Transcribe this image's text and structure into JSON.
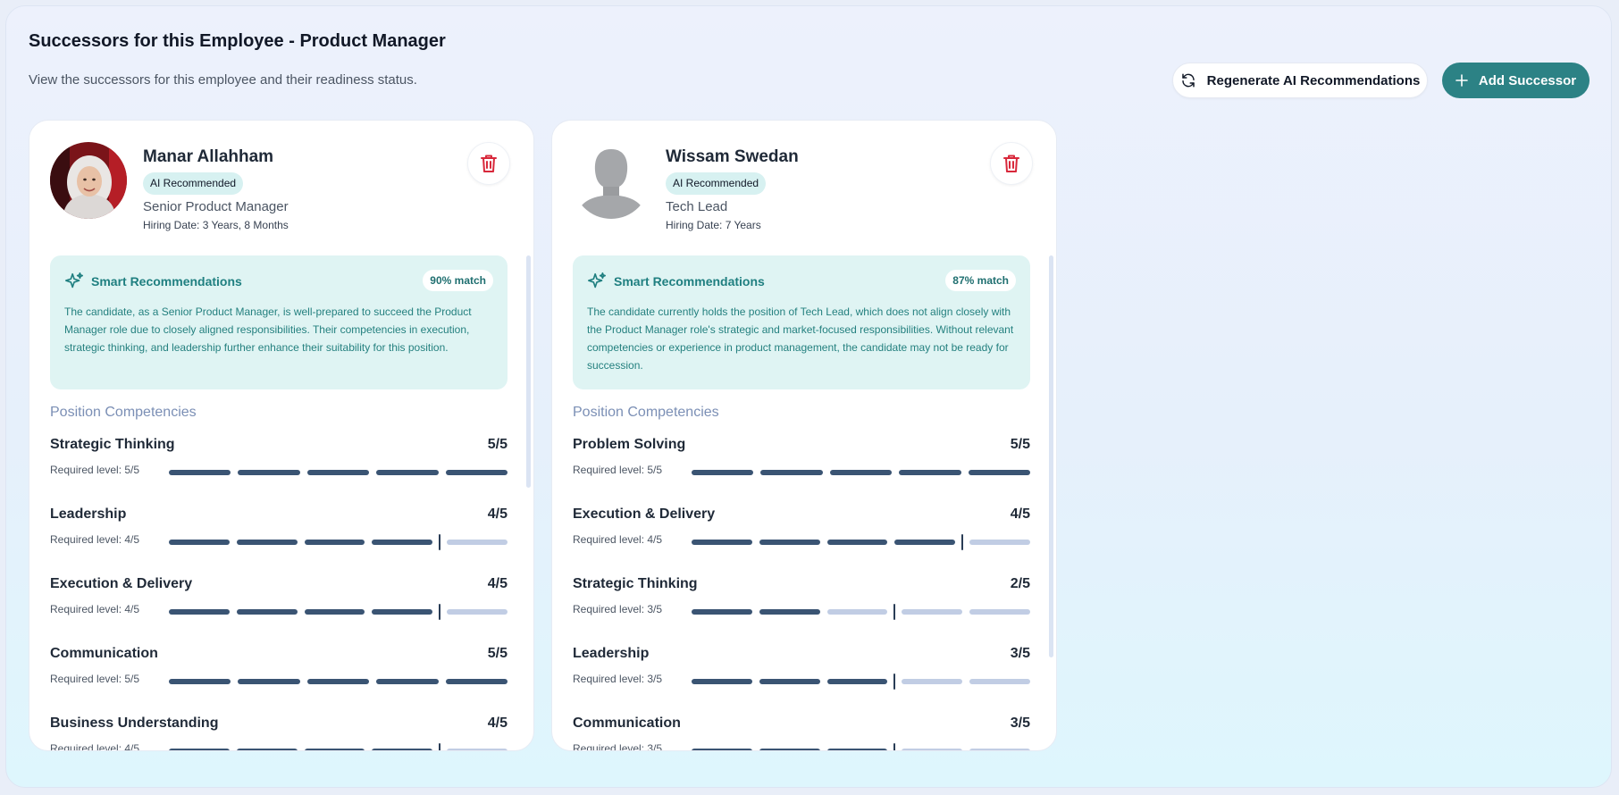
{
  "page": {
    "title": "Successors for this Employee - Product Manager",
    "subtitle": "View the successors for this employee and their readiness status."
  },
  "actions": {
    "regenerate_label": "Regenerate AI Recommendations",
    "add_label": "Add Successor"
  },
  "colors": {
    "accent": "#2c8285",
    "bar_filled": "#3a5473",
    "bar_empty": "#c1cde4",
    "delete": "#d8283b"
  },
  "candidates": [
    {
      "name": "Manar Allahham",
      "badge": "AI Recommended",
      "role": "Senior Product Manager",
      "hiring": "Hiring Date: 3 Years, 8 Months",
      "rec_title": "Smart Recommendations",
      "match": "90% match",
      "rec_text": "The candidate, as a Senior Product Manager, is well-prepared to succeed the Product Manager role due to closely aligned responsibilities. Their competencies in execution, strategic thinking, and leadership further enhance their suitability for this position.",
      "comp_heading": "Position Competencies",
      "competencies": [
        {
          "name": "Strategic Thinking",
          "score_text": "5/5",
          "required_text": "Required level: 5/5",
          "score": 5,
          "required": 5
        },
        {
          "name": "Leadership",
          "score_text": "4/5",
          "required_text": "Required level: 4/5",
          "score": 4,
          "required": 4
        },
        {
          "name": "Execution & Delivery",
          "score_text": "4/5",
          "required_text": "Required level: 4/5",
          "score": 4,
          "required": 4
        },
        {
          "name": "Communication",
          "score_text": "5/5",
          "required_text": "Required level: 5/5",
          "score": 5,
          "required": 5
        },
        {
          "name": "Business Understanding",
          "score_text": "4/5",
          "required_text": "Required level: 4/5",
          "score": 4,
          "required": 4
        }
      ]
    },
    {
      "name": "Wissam Swedan",
      "badge": "AI Recommended",
      "role": "Tech Lead",
      "hiring": "Hiring Date: 7 Years",
      "rec_title": "Smart Recommendations",
      "match": "87% match",
      "rec_text": "The candidate currently holds the position of Tech Lead, which does not align closely with the Product Manager role's strategic and market-focused responsibilities. Without relevant competencies or experience in product management, the candidate may not be ready for succession.",
      "comp_heading": "Position Competencies",
      "competencies": [
        {
          "name": "Problem Solving",
          "score_text": "5/5",
          "required_text": "Required level: 5/5",
          "score": 5,
          "required": 5
        },
        {
          "name": "Execution & Delivery",
          "score_text": "4/5",
          "required_text": "Required level: 4/5",
          "score": 4,
          "required": 4
        },
        {
          "name": "Strategic Thinking",
          "score_text": "2/5",
          "required_text": "Required level: 3/5",
          "score": 2,
          "required": 3
        },
        {
          "name": "Leadership",
          "score_text": "3/5",
          "required_text": "Required level: 3/5",
          "score": 3,
          "required": 3
        },
        {
          "name": "Communication",
          "score_text": "3/5",
          "required_text": "Required level: 3/5",
          "score": 3,
          "required": 3
        }
      ]
    }
  ]
}
